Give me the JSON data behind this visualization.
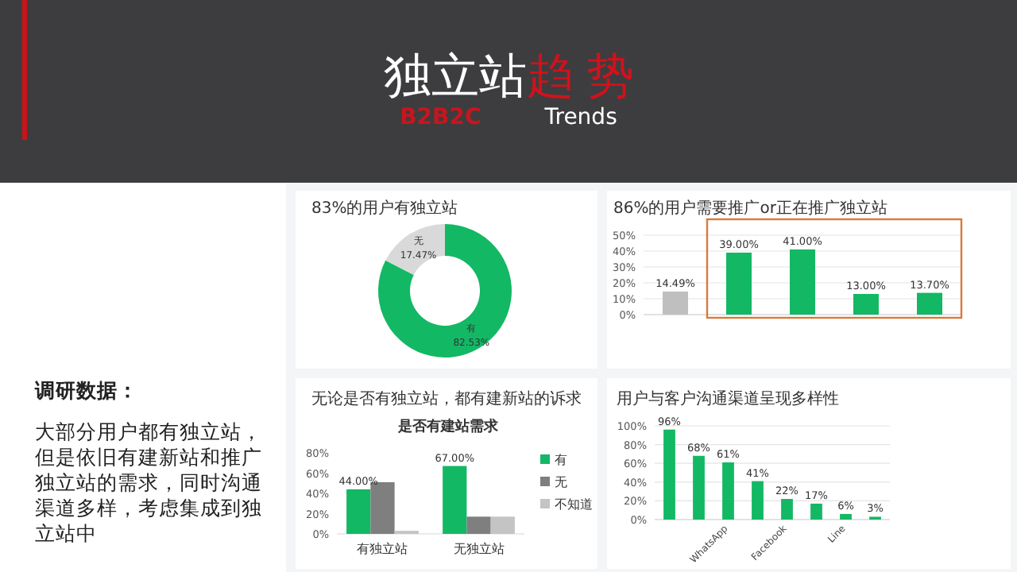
{
  "chart_data": [
    {
      "type": "other",
      "title": "独立站趋 势",
      "subtitle": "B2B2C Trends"
    },
    {
      "type": "other",
      "title": "调研数据：",
      "annotations": [
        "大部分用户都有独立站，但是依旧有建新站和推广独立站的需求，同时沟通渠道多样，考虑集成到独立站中"
      ]
    },
    {
      "type": "donut",
      "title": "83%的用户有独立站",
      "categories": [
        "有",
        "无"
      ],
      "values": [
        82.53,
        17.47
      ],
      "colors": [
        "#13b865",
        "#d9d9d9"
      ],
      "value_labels": [
        "82.53%",
        "17.47%"
      ]
    },
    {
      "type": "bar",
      "title": "86%的用户需要推广or正在推广独立站",
      "categories": [
        null,
        null,
        null,
        null,
        null
      ],
      "values": [
        14.49,
        39.0,
        41.0,
        13.0,
        13.7
      ],
      "colors": [
        "#bfbfbf",
        "#13b865",
        "#13b865",
        "#13b865",
        "#13b865"
      ],
      "value_labels": [
        "14.49%",
        "39.00%",
        "41.00%",
        "13.00%",
        "13.70%"
      ],
      "ylim": [
        0,
        50
      ],
      "yticks": [
        {
          "value": 0,
          "label": "0%"
        },
        {
          "value": 10,
          "label": "10%"
        },
        {
          "value": 20,
          "label": "20%"
        },
        {
          "value": 30,
          "label": "30%"
        },
        {
          "value": 40,
          "label": "40%"
        },
        {
          "value": 50,
          "label": "50%"
        }
      ],
      "grid": "y"
    },
    {
      "type": "bar",
      "title": "是否有建站需求",
      "subtitle": "无论是否有独立站，都有建新站的诉求",
      "categories": [
        "有独立站",
        "无独立站"
      ],
      "series": [
        {
          "name": "有",
          "color": "#13b865",
          "values": [
            44,
            67
          ],
          "value_labels": [
            "44.00%",
            "67.00%"
          ]
        },
        {
          "name": "无",
          "color": "#7f7f7f",
          "values": [
            51,
            17
          ]
        },
        {
          "name": "不知道",
          "color": "#c4c4c4",
          "values": [
            3,
            17
          ]
        }
      ],
      "ylim": [
        0,
        80
      ],
      "yticks": [
        {
          "value": 0,
          "label": "0%"
        },
        {
          "value": 20,
          "label": "20%"
        },
        {
          "value": 40,
          "label": "40%"
        },
        {
          "value": 60,
          "label": "60%"
        },
        {
          "value": 80,
          "label": "80%"
        }
      ],
      "legend": "right"
    },
    {
      "type": "bar",
      "title": "用户与客户沟通渠道呈现多样性",
      "categories": [
        null,
        null,
        "WhatsApp",
        null,
        "Facebook",
        null,
        "Line",
        null
      ],
      "values": [
        96,
        68,
        61,
        41,
        22,
        17,
        6,
        3
      ],
      "color": "#13b865",
      "value_labels": [
        "96%",
        "68%",
        "61%",
        "41%",
        "22%",
        "17%",
        "6%",
        "3%"
      ],
      "ylim": [
        0,
        100
      ],
      "yticks": [
        {
          "value": 0,
          "label": "0%"
        },
        {
          "value": 20,
          "label": "20%"
        },
        {
          "value": 40,
          "label": "40%"
        },
        {
          "value": 60,
          "label": "60%"
        },
        {
          "value": 80,
          "label": "80%"
        },
        {
          "value": 100,
          "label": "100%"
        }
      ],
      "grid": "y"
    }
  ]
}
